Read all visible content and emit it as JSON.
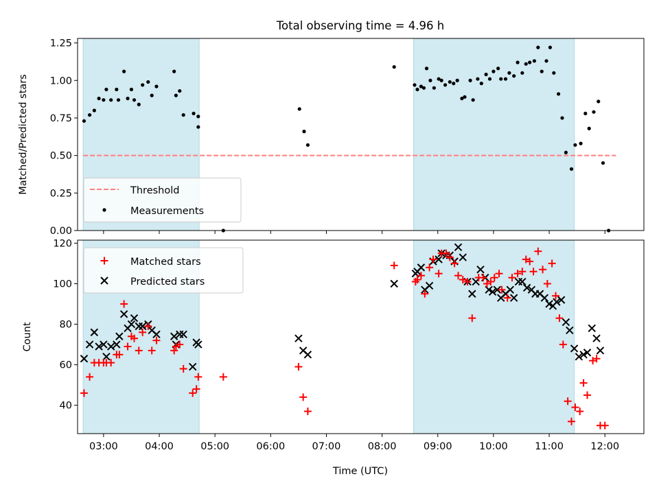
{
  "figure_title": "Total observing time = 4.96 h",
  "colors": {
    "shade": "#add8e6",
    "threshold": "#ff7f7f",
    "matched": "#ff0000",
    "predicted": "#000000",
    "measurement": "#000000"
  },
  "chart_data": [
    {
      "type": "scatter",
      "title": "Total observing time = 4.96 h",
      "xlabel": "",
      "ylabel": "Matched/Predicted stars",
      "xlim": [
        "02:32",
        "12:42"
      ],
      "ylim": [
        0,
        1.28
      ],
      "y_ticks": [
        "0.00",
        "0.25",
        "0.50",
        "0.75",
        "1.00",
        "1.25"
      ],
      "x_ticks": [
        "03:00",
        "04:00",
        "05:00",
        "06:00",
        "07:00",
        "08:00",
        "09:00",
        "10:00",
        "11:00",
        "12:00"
      ],
      "tick_labels_visible": false,
      "legend_position": "lower-left",
      "shaded_intervals": [
        [
          "02:38",
          "04:43"
        ],
        [
          "08:34",
          "11:27"
        ]
      ],
      "threshold": {
        "name": "Threshold",
        "y": 0.5,
        "x_range": [
          "02:38",
          "12:12"
        ],
        "style": "dashed"
      },
      "series": [
        {
          "name": "Measurements",
          "points": [
            [
              "02:39",
              0.73
            ],
            [
              "02:45",
              0.77
            ],
            [
              "02:50",
              0.8
            ],
            [
              "02:55",
              0.88
            ],
            [
              "03:00",
              0.87
            ],
            [
              "03:03",
              0.94
            ],
            [
              "03:08",
              0.87
            ],
            [
              "03:14",
              0.94
            ],
            [
              "03:16",
              0.87
            ],
            [
              "03:22",
              1.06
            ],
            [
              "03:26",
              0.88
            ],
            [
              "03:30",
              0.94
            ],
            [
              "03:33",
              0.87
            ],
            [
              "03:38",
              0.84
            ],
            [
              "03:42",
              0.97
            ],
            [
              "03:48",
              0.99
            ],
            [
              "03:52",
              0.9
            ],
            [
              "03:57",
              0.96
            ],
            [
              "04:16",
              1.06
            ],
            [
              "04:18",
              0.9
            ],
            [
              "04:22",
              0.93
            ],
            [
              "04:26",
              0.77
            ],
            [
              "04:37",
              0.78
            ],
            [
              "04:42",
              0.76
            ],
            [
              "04:42",
              0.69
            ],
            [
              "05:09",
              0.0
            ],
            [
              "06:31",
              0.81
            ],
            [
              "06:36",
              0.66
            ],
            [
              "06:40",
              0.57
            ],
            [
              "08:13",
              1.09
            ],
            [
              "08:35",
              0.97
            ],
            [
              "08:38",
              0.94
            ],
            [
              "08:42",
              0.96
            ],
            [
              "08:45",
              0.95
            ],
            [
              "08:48",
              1.08
            ],
            [
              "08:52",
              1.0
            ],
            [
              "08:56",
              0.95
            ],
            [
              "09:01",
              1.01
            ],
            [
              "09:04",
              1.0
            ],
            [
              "09:08",
              0.97
            ],
            [
              "09:13",
              0.99
            ],
            [
              "09:17",
              0.98
            ],
            [
              "09:21",
              1.0
            ],
            [
              "09:26",
              0.88
            ],
            [
              "09:29",
              0.89
            ],
            [
              "09:35",
              1.0
            ],
            [
              "09:38",
              0.87
            ],
            [
              "09:43",
              1.01
            ],
            [
              "09:47",
              0.98
            ],
            [
              "09:52",
              1.04
            ],
            [
              "09:56",
              1.01
            ],
            [
              "10:00",
              1.06
            ],
            [
              "10:05",
              1.08
            ],
            [
              "10:08",
              1.01
            ],
            [
              "10:13",
              1.01
            ],
            [
              "10:17",
              1.05
            ],
            [
              "10:22",
              1.03
            ],
            [
              "10:26",
              1.12
            ],
            [
              "10:31",
              1.05
            ],
            [
              "10:35",
              1.11
            ],
            [
              "10:39",
              1.12
            ],
            [
              "10:44",
              1.13
            ],
            [
              "10:48",
              1.22
            ],
            [
              "10:52",
              1.06
            ],
            [
              "10:57",
              1.13
            ],
            [
              "11:01",
              1.22
            ],
            [
              "11:05",
              1.05
            ],
            [
              "11:10",
              0.91
            ],
            [
              "11:14",
              0.75
            ],
            [
              "11:18",
              0.52
            ],
            [
              "11:24",
              0.41
            ],
            [
              "11:28",
              0.57
            ],
            [
              "11:34",
              0.58
            ],
            [
              "11:39",
              0.78
            ],
            [
              "11:43",
              0.68
            ],
            [
              "11:48",
              0.79
            ],
            [
              "11:53",
              0.86
            ],
            [
              "11:58",
              0.45
            ],
            [
              "12:04",
              0.0
            ]
          ]
        }
      ]
    },
    {
      "type": "scatter",
      "xlabel": "Time (UTC)",
      "ylabel": "Count",
      "xlim": [
        "02:32",
        "12:42"
      ],
      "ylim": [
        26,
        121.5
      ],
      "y_ticks": [
        "40",
        "60",
        "80",
        "100",
        "120"
      ],
      "x_ticks": [
        "03:00",
        "04:00",
        "05:00",
        "06:00",
        "07:00",
        "08:00",
        "09:00",
        "10:00",
        "11:00",
        "12:00"
      ],
      "legend_position": "upper-left",
      "shaded_intervals": [
        [
          "02:38",
          "04:43"
        ],
        [
          "08:34",
          "11:27"
        ]
      ],
      "series": [
        {
          "name": "Matched stars",
          "points": [
            [
              "02:39",
              46
            ],
            [
              "02:45",
              54
            ],
            [
              "02:50",
              61
            ],
            [
              "02:55",
              61
            ],
            [
              "03:00",
              61
            ],
            [
              "03:03",
              61
            ],
            [
              "03:08",
              61
            ],
            [
              "03:14",
              65
            ],
            [
              "03:17",
              65
            ],
            [
              "03:22",
              90
            ],
            [
              "03:26",
              69
            ],
            [
              "03:30",
              74
            ],
            [
              "03:33",
              73
            ],
            [
              "03:38",
              67
            ],
            [
              "03:42",
              76
            ],
            [
              "03:48",
              79
            ],
            [
              "03:52",
              67
            ],
            [
              "03:57",
              72
            ],
            [
              "04:16",
              67
            ],
            [
              "04:18",
              69
            ],
            [
              "04:22",
              70
            ],
            [
              "04:26",
              58
            ],
            [
              "04:36",
              46
            ],
            [
              "04:40",
              48
            ],
            [
              "04:42",
              54
            ],
            [
              "05:09",
              54
            ],
            [
              "06:30",
              59
            ],
            [
              "06:35",
              44
            ],
            [
              "06:40",
              37
            ],
            [
              "08:13",
              109
            ],
            [
              "08:36",
              101
            ],
            [
              "08:38",
              102
            ],
            [
              "08:42",
              104
            ],
            [
              "08:46",
              95
            ],
            [
              "08:51",
              108
            ],
            [
              "08:55",
              112
            ],
            [
              "09:01",
              105
            ],
            [
              "09:04",
              115
            ],
            [
              "09:09",
              115
            ],
            [
              "09:13",
              113
            ],
            [
              "09:18",
              110
            ],
            [
              "09:22",
              104
            ],
            [
              "09:27",
              102
            ],
            [
              "09:32",
              101
            ],
            [
              "09:37",
              83
            ],
            [
              "09:44",
              103
            ],
            [
              "09:49",
              103
            ],
            [
              "09:53",
              100
            ],
            [
              "09:57",
              101
            ],
            [
              "10:01",
              103
            ],
            [
              "10:06",
              105
            ],
            [
              "10:09",
              97
            ],
            [
              "10:15",
              93
            ],
            [
              "10:20",
              103
            ],
            [
              "10:26",
              105
            ],
            [
              "10:31",
              106
            ],
            [
              "10:35",
              112
            ],
            [
              "10:39",
              111
            ],
            [
              "10:43",
              106
            ],
            [
              "10:48",
              116
            ],
            [
              "10:53",
              107
            ],
            [
              "10:58",
              100
            ],
            [
              "11:03",
              110
            ],
            [
              "11:07",
              94
            ],
            [
              "11:11",
              83
            ],
            [
              "11:15",
              70
            ],
            [
              "11:20",
              42
            ],
            [
              "11:24",
              32
            ],
            [
              "11:28",
              39
            ],
            [
              "11:33",
              37
            ],
            [
              "11:37",
              51
            ],
            [
              "11:41",
              45
            ],
            [
              "11:47",
              62
            ],
            [
              "11:51",
              63
            ],
            [
              "11:55",
              30
            ],
            [
              "12:00",
              30
            ]
          ]
        },
        {
          "name": "Predicted stars",
          "points": [
            [
              "02:39",
              63
            ],
            [
              "02:45",
              70
            ],
            [
              "02:50",
              76
            ],
            [
              "02:55",
              69
            ],
            [
              "03:00",
              70
            ],
            [
              "03:03",
              64
            ],
            [
              "03:08",
              69
            ],
            [
              "03:14",
              70
            ],
            [
              "03:17",
              74
            ],
            [
              "03:22",
              85
            ],
            [
              "03:26",
              78
            ],
            [
              "03:30",
              80
            ],
            [
              "03:33",
              83
            ],
            [
              "03:38",
              79
            ],
            [
              "03:42",
              79
            ],
            [
              "03:48",
              80
            ],
            [
              "03:52",
              77
            ],
            [
              "03:57",
              75
            ],
            [
              "04:16",
              74
            ],
            [
              "04:18",
              70
            ],
            [
              "04:22",
              75
            ],
            [
              "04:26",
              75
            ],
            [
              "04:36",
              59
            ],
            [
              "04:40",
              71
            ],
            [
              "04:42",
              70
            ],
            [
              "06:30",
              73
            ],
            [
              "06:35",
              67
            ],
            [
              "06:40",
              65
            ],
            [
              "08:13",
              100
            ],
            [
              "08:36",
              105
            ],
            [
              "08:38",
              106
            ],
            [
              "08:42",
              108
            ],
            [
              "08:46",
              97
            ],
            [
              "08:51",
              99
            ],
            [
              "08:55",
              111
            ],
            [
              "09:01",
              112
            ],
            [
              "09:04",
              115
            ],
            [
              "09:09",
              114
            ],
            [
              "09:13",
              114
            ],
            [
              "09:18",
              111
            ],
            [
              "09:22",
              118
            ],
            [
              "09:27",
              113
            ],
            [
              "09:32",
              101
            ],
            [
              "09:37",
              95
            ],
            [
              "09:41",
              101
            ],
            [
              "09:46",
              107
            ],
            [
              "09:51",
              103
            ],
            [
              "09:55",
              97
            ],
            [
              "09:59",
              96
            ],
            [
              "10:04",
              97
            ],
            [
              "10:08",
              93
            ],
            [
              "10:13",
              95
            ],
            [
              "10:18",
              97
            ],
            [
              "10:22",
              93
            ],
            [
              "10:27",
              101
            ],
            [
              "10:31",
              101
            ],
            [
              "10:36",
              98
            ],
            [
              "10:41",
              97
            ],
            [
              "10:45",
              95
            ],
            [
              "10:50",
              95
            ],
            [
              "10:55",
              93
            ],
            [
              "11:00",
              90
            ],
            [
              "11:04",
              89
            ],
            [
              "11:08",
              91
            ],
            [
              "11:13",
              92
            ],
            [
              "11:18",
              81
            ],
            [
              "11:22",
              77
            ],
            [
              "11:27",
              68
            ],
            [
              "11:32",
              64
            ],
            [
              "11:37",
              65
            ],
            [
              "11:41",
              66
            ],
            [
              "11:46",
              78
            ],
            [
              "11:51",
              73
            ],
            [
              "11:55",
              67
            ]
          ]
        }
      ]
    }
  ]
}
